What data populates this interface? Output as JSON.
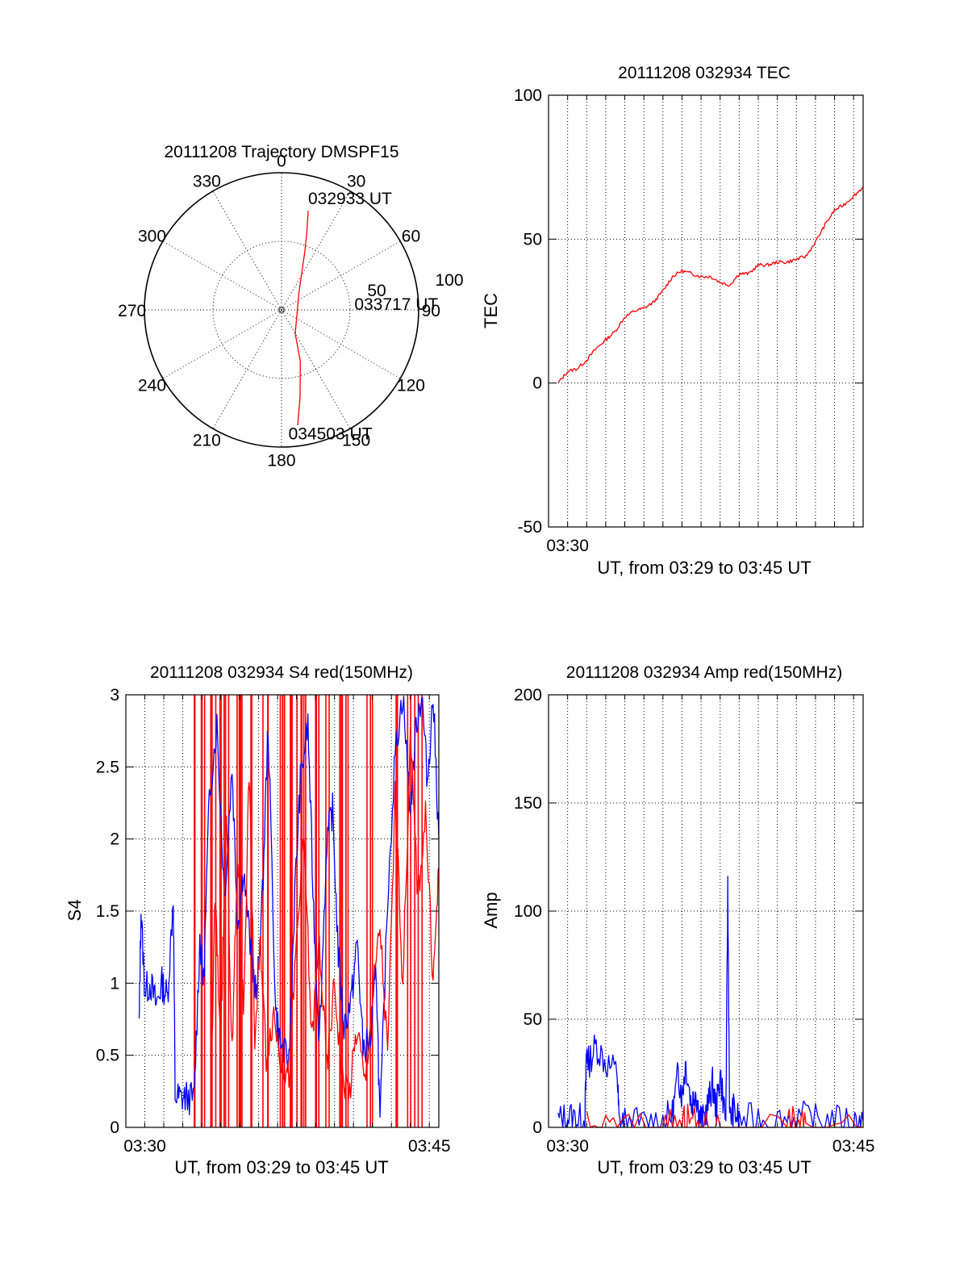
{
  "chart_data": [
    {
      "id": "trajectory",
      "type": "polar",
      "title": "20111208 Trajectory DMSPF15",
      "angle_labels": [
        "0",
        "30",
        "60",
        "90",
        "120",
        "150",
        "180",
        "210",
        "240",
        "270",
        "300",
        "330"
      ],
      "radial_labels": [
        "50",
        "100"
      ],
      "rmax": 100,
      "series": [
        {
          "color": "#ff0000",
          "points": [
            [
              15,
              75
            ],
            [
              18,
              60
            ],
            [
              22,
              45
            ],
            [
              45,
              18
            ],
            [
              150,
              20
            ],
            [
              160,
              40
            ],
            [
              168,
              65
            ],
            [
              172,
              85
            ]
          ]
        }
      ],
      "annotations": [
        {
          "text": "032933 UT",
          "az": 15,
          "r": 75
        },
        {
          "text": "033717 UT",
          "az": 75,
          "r": 55
        },
        {
          "text": "034503 UT",
          "az": 172,
          "r": 87
        }
      ]
    },
    {
      "id": "tec",
      "type": "line",
      "title": "20111208 032934 TEC",
      "xlabel": "UT, from 03:29 to 03:45 UT",
      "ylabel": "TEC",
      "xlim": [
        0,
        16.5
      ],
      "ylim": [
        -50,
        100
      ],
      "xticks": [
        {
          "v": 1,
          "label": "03:30"
        }
      ],
      "yticks": [
        -50,
        0,
        50,
        100
      ],
      "grid": true,
      "series": [
        {
          "color": "#ff0000",
          "x": [
            0.5,
            1,
            1.5,
            2,
            2.5,
            3,
            3.5,
            4,
            4.5,
            5,
            5.5,
            6,
            6.5,
            7,
            7.5,
            8,
            8.5,
            9,
            9.5,
            10,
            10.5,
            11,
            11.5,
            12,
            12.5,
            13,
            13.5,
            14,
            14.5,
            15,
            15.5,
            16,
            16.5
          ],
          "y": [
            0,
            4,
            5,
            8,
            12,
            15,
            18,
            23,
            25,
            26,
            28,
            32,
            37,
            39,
            38,
            37,
            37,
            35,
            34,
            38,
            38,
            41,
            41,
            42,
            42,
            43,
            44,
            49,
            55,
            60,
            62,
            65,
            68
          ]
        }
      ]
    },
    {
      "id": "s4",
      "type": "line",
      "title": "20111208 032934 S4 red(150MHz)",
      "xlabel": "UT, from 03:29 to 03:45 UT",
      "ylabel": "S4",
      "xlim": [
        0,
        16.5
      ],
      "ylim": [
        0,
        3
      ],
      "xticks": [
        {
          "v": 1,
          "label": "03:30"
        },
        {
          "v": 16,
          "label": "03:45"
        }
      ],
      "yticks": [
        "0",
        "0.5",
        "1",
        "1.5",
        "2",
        "2.5",
        "3"
      ],
      "grid": true,
      "series": [
        {
          "color": "#0000ff",
          "x": [
            0.7,
            0.8,
            1,
            1.3,
            1.6,
            1.9,
            2.2,
            2.5,
            2.6,
            2.9,
            3.2,
            3.6,
            3.9,
            4.1,
            4.4,
            4.8,
            5.2,
            5.6,
            5.9,
            6.2,
            6.6,
            6.9,
            7.2,
            7.5,
            7.9,
            8.2,
            8.6,
            8.9,
            9.2,
            9.6,
            9.9,
            10.2,
            10.6,
            10.9,
            11.2,
            11.5,
            11.9,
            12.2,
            12.5,
            12.9,
            13.2,
            13.4,
            13.8,
            14.2,
            14.6,
            15,
            15.3,
            15.6,
            15.9,
            16.2,
            16.5
          ],
          "y": [
            0.7,
            1.5,
            0.95,
            1.0,
            0.85,
            1.0,
            0.9,
            1.6,
            0.22,
            0.2,
            0.21,
            0.2,
            1.3,
            1.0,
            2.3,
            2.8,
            1.6,
            2.5,
            1.4,
            1.8,
            1.2,
            0.9,
            1.6,
            2.8,
            0.8,
            0.55,
            0.45,
            1.6,
            2.4,
            2.8,
            1.5,
            0.6,
            2.0,
            2.2,
            1.2,
            0.7,
            0.9,
            1.3,
            0.55,
            0.6,
            1.1,
            0.0,
            1.6,
            2.6,
            3.0,
            2.2,
            2.8,
            3.0,
            2.4,
            3.0,
            2.0
          ]
        },
        {
          "color": "#ff0000",
          "x": [
            4.5,
            4.7,
            5,
            5.3,
            5.6,
            5.9,
            6.2,
            6.5,
            6.8,
            7.1,
            7.4,
            7.8,
            8.2,
            8.6,
            9.0,
            9.4,
            9.8,
            10.2,
            10.6,
            11.0,
            11.4,
            11.8,
            12.2,
            12.6,
            13.0,
            13.4,
            13.8,
            14.2,
            14.6,
            15.0,
            15.4,
            15.8,
            16.2,
            16.5
          ],
          "y": [
            0.3,
            1.6,
            0.6,
            2.2,
            0.5,
            1.9,
            0.8,
            2.5,
            0.6,
            1.3,
            0.5,
            0.8,
            0.45,
            0.35,
            1.3,
            2.0,
            0.6,
            1.3,
            0.4,
            1.0,
            0.35,
            0.25,
            0.7,
            0.3,
            0.9,
            1.4,
            0.5,
            2.3,
            1.0,
            2.7,
            1.6,
            2.2,
            1.0,
            1.8
          ]
        }
      ],
      "spikes": [
        {
          "x": [
            3.0,
            15.8
          ],
          "color": "#ff0000",
          "from": 0,
          "to": 3,
          "count": 60
        }
      ]
    },
    {
      "id": "amp",
      "type": "line",
      "title": "20111208 032934 Amp red(150MHz)",
      "xlabel": "UT, from 03:29 to 03:45 UT",
      "ylabel": "Amp",
      "xlim": [
        0,
        16.5
      ],
      "ylim": [
        0,
        200
      ],
      "xticks": [
        {
          "v": 1,
          "label": "03:30"
        },
        {
          "v": 16,
          "label": "03:45"
        }
      ],
      "yticks": [
        0,
        50,
        100,
        150,
        200
      ],
      "grid": true,
      "series": [
        {
          "color": "#0000ff",
          "x": [
            0.5,
            1,
            1.5,
            1.9,
            2.0,
            2.1,
            2.5,
            3.0,
            3.6,
            3.7,
            4,
            5,
            6,
            6.5,
            6.8,
            7.0,
            7.2,
            7.5,
            7.7,
            7.9,
            8.1,
            8.4,
            8.6,
            8.8,
            9.0,
            9.3,
            9.4,
            9.5,
            9.7,
            10,
            11,
            12,
            13,
            14,
            15,
            16,
            16.5
          ],
          "y": [
            3,
            5,
            4,
            3,
            35,
            30,
            38,
            30,
            25,
            2,
            2,
            2,
            3,
            6,
            25,
            15,
            30,
            10,
            18,
            6,
            3,
            12,
            20,
            8,
            25,
            3,
            110,
            3,
            8,
            3,
            4,
            3,
            5,
            3,
            3,
            3,
            3
          ]
        },
        {
          "color": "#ff0000",
          "x": [
            2.0,
            3.6,
            6.0,
            7.0,
            7.3,
            8.0,
            9.0,
            12.5,
            13.0,
            13.5,
            16.5
          ],
          "y": [
            0,
            0,
            0,
            1,
            4,
            0,
            0,
            1,
            3,
            0,
            0
          ]
        }
      ]
    }
  ]
}
